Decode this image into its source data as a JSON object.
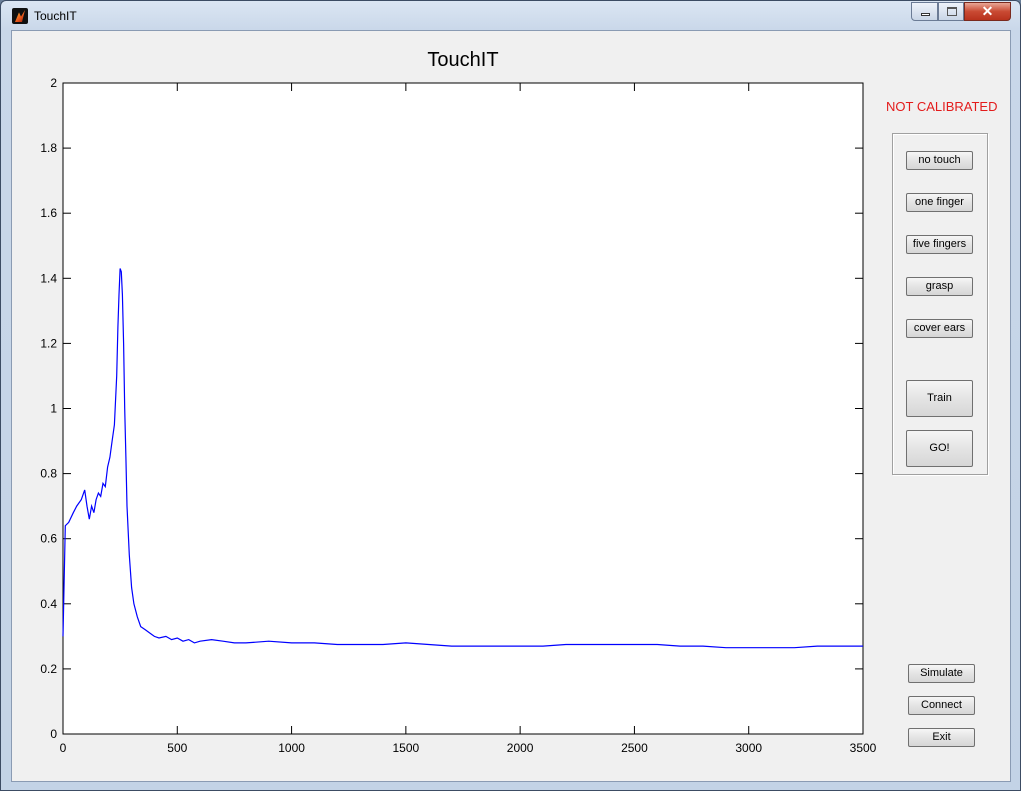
{
  "window": {
    "title": "TouchIT"
  },
  "status": {
    "text": "NOT CALIBRATED",
    "color": "#e31b1b"
  },
  "calibration_buttons": [
    "no touch",
    "one finger",
    "five fingers",
    "grasp",
    "cover ears"
  ],
  "actions": {
    "train": "Train",
    "go": "GO!"
  },
  "side_buttons": {
    "simulate": "Simulate",
    "connect": "Connect",
    "exit": "Exit"
  },
  "chart_data": {
    "type": "line",
    "title": "TouchIT",
    "xlabel": "",
    "ylabel": "",
    "xlim": [
      0,
      3500
    ],
    "ylim": [
      0,
      2
    ],
    "xticks": [
      0,
      500,
      1000,
      1500,
      2000,
      2500,
      3000,
      3500
    ],
    "yticks": [
      0,
      0.2,
      0.4,
      0.6,
      0.8,
      1,
      1.2,
      1.4,
      1.6,
      1.8,
      2
    ],
    "ytick_labels": [
      "0",
      "0.2",
      "0.4",
      "0.6",
      "0.8",
      "1",
      "1.2",
      "1.4",
      "1.6",
      "1.8",
      "2"
    ],
    "grid": false,
    "line_color": "#0000ff",
    "series": [
      {
        "x": [
          0,
          10,
          25,
          45,
          60,
          80,
          95,
          105,
          115,
          125,
          135,
          145,
          155,
          165,
          175,
          185,
          195,
          205,
          215,
          225,
          235,
          240,
          245,
          250,
          255,
          260,
          265,
          270,
          275,
          280,
          290,
          300,
          310,
          325,
          340,
          360,
          380,
          400,
          420,
          450,
          475,
          500,
          525,
          550,
          575,
          600,
          650,
          700,
          750,
          800,
          900,
          1000,
          1100,
          1200,
          1300,
          1400,
          1500,
          1600,
          1700,
          1800,
          1900,
          2000,
          2100,
          2200,
          2300,
          2400,
          2500,
          2600,
          2700,
          2800,
          2900,
          3000,
          3100,
          3200,
          3300,
          3400,
          3500
        ],
        "y": [
          0.3,
          0.64,
          0.65,
          0.68,
          0.7,
          0.72,
          0.75,
          0.7,
          0.66,
          0.7,
          0.68,
          0.72,
          0.74,
          0.73,
          0.77,
          0.76,
          0.82,
          0.85,
          0.9,
          0.95,
          1.1,
          1.25,
          1.35,
          1.43,
          1.42,
          1.35,
          1.2,
          1.0,
          0.85,
          0.7,
          0.55,
          0.45,
          0.4,
          0.36,
          0.33,
          0.32,
          0.31,
          0.3,
          0.295,
          0.3,
          0.29,
          0.295,
          0.285,
          0.29,
          0.28,
          0.285,
          0.29,
          0.285,
          0.28,
          0.28,
          0.285,
          0.28,
          0.28,
          0.275,
          0.275,
          0.275,
          0.28,
          0.275,
          0.27,
          0.27,
          0.27,
          0.27,
          0.27,
          0.275,
          0.275,
          0.275,
          0.275,
          0.275,
          0.27,
          0.27,
          0.265,
          0.265,
          0.265,
          0.265,
          0.27,
          0.27,
          0.27
        ]
      }
    ]
  }
}
